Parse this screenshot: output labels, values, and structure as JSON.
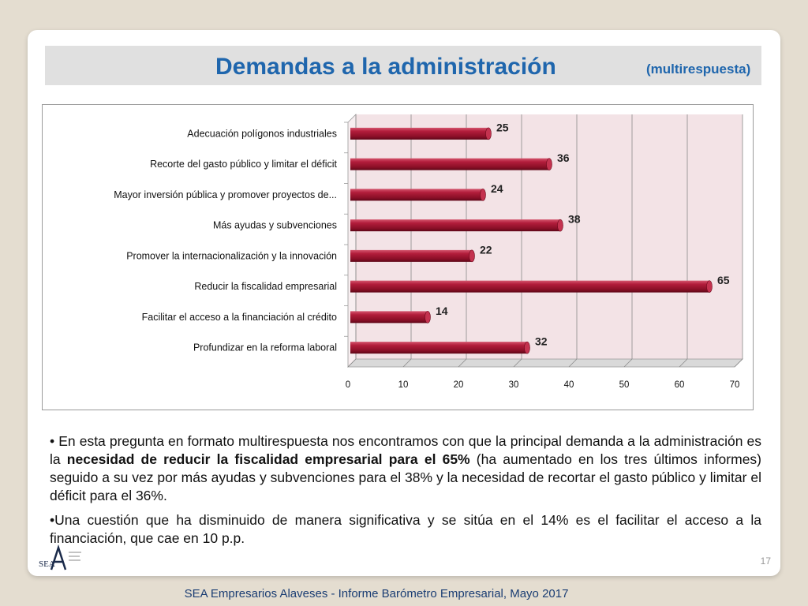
{
  "header": {
    "title": "Demandas a la administración",
    "subtitle": "(multirespuesta)"
  },
  "chart_data": {
    "type": "bar",
    "orientation": "horizontal",
    "categories": [
      "Adecuación polígonos industriales",
      "Recorte del gasto público y limitar el déficit",
      "Mayor inversión pública y promover proyectos de...",
      "Más ayudas y subvenciones",
      "Promover la internacionalización y la innovación",
      "Reducir la fiscalidad empresarial",
      "Facilitar el acceso a la financiación al crédito",
      "Profundizar en la reforma laboral"
    ],
    "values": [
      25,
      36,
      24,
      38,
      22,
      65,
      14,
      32
    ],
    "xlim": [
      0,
      70
    ],
    "xticks": [
      "0",
      "10",
      "20",
      "30",
      "40",
      "50",
      "60",
      "70"
    ],
    "grid": true,
    "bar_color": "#9b1530",
    "title": "",
    "xlabel": "",
    "ylabel": ""
  },
  "body": {
    "p1_start": "• En esta pregunta en formato multirespuesta nos encontramos con que la principal demanda a la administración es la ",
    "p1_bold": "necesidad de reducir la fiscalidad empresarial para el 65%",
    "p1_end": "  (ha aumentado en los tres últimos informes) seguido a su vez por más ayudas y subvenciones para el 38% y  la necesidad de recortar el gasto público y limitar el déficit para el 36%.",
    "p2": "•Una cuestión que ha disminuido de manera significativa y se sitúa en el 14% es el facilitar el acceso a la financiación, que cae en 10 p.p."
  },
  "page_number": "17",
  "logo": {
    "text": "SEA"
  },
  "footer": "SEA Empresarios Alaveses  -  Informe Barómetro Empresarial, Mayo 2017"
}
